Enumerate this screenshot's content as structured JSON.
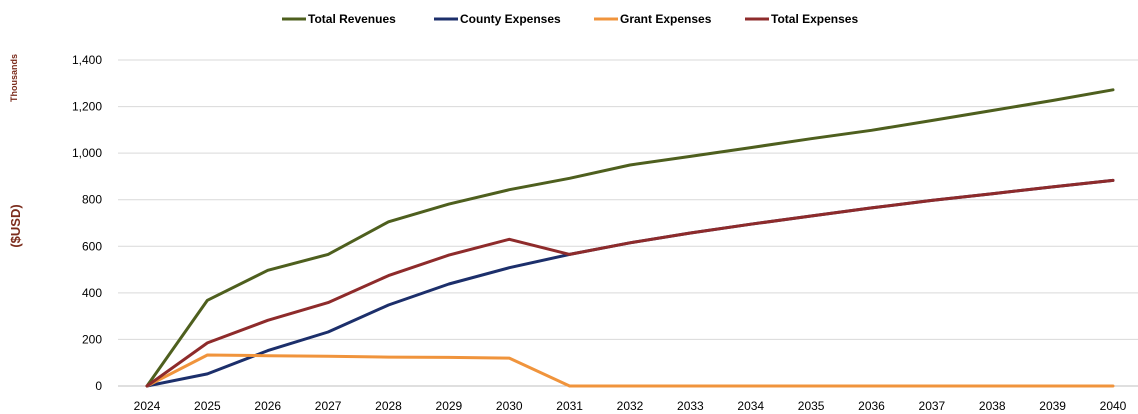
{
  "chart_data": {
    "type": "line",
    "title": "",
    "xlabel": "",
    "ylabel": "($USD)",
    "yunit_label": "Thousands",
    "x": [
      "2024",
      "2025",
      "2026",
      "2027",
      "2028",
      "2029",
      "2030",
      "2031",
      "2032",
      "2033",
      "2034",
      "2035",
      "2036",
      "2037",
      "2038",
      "2039",
      "2040"
    ],
    "ylim": [
      0,
      1400
    ],
    "yticks": [
      "0",
      "200",
      "400",
      "600",
      "800",
      "1,000",
      "1,200",
      "1,400"
    ],
    "ytick_values": [
      0,
      200,
      400,
      600,
      800,
      1000,
      1200,
      1400
    ],
    "grid": true,
    "legend_position": "top",
    "series": [
      {
        "name": "Total Revenues",
        "color": "#4e5f1e",
        "values": [
          0,
          368,
          497,
          565,
          705,
          781,
          843,
          892,
          949,
          986,
          1024,
          1062,
          1098,
          1140,
          1183,
          1226,
          1272
        ]
      },
      {
        "name": "County Expenses",
        "color": "#1c2f6b",
        "values": [
          0,
          52,
          152,
          232,
          348,
          438,
          508,
          565,
          615,
          657,
          695,
          730,
          765,
          797,
          826,
          855,
          883
        ]
      },
      {
        "name": "Grant Expenses",
        "color": "#f0943c",
        "values": [
          0,
          133,
          130,
          128,
          124,
          123,
          120,
          0,
          0,
          0,
          0,
          0,
          0,
          0,
          0,
          0,
          0
        ]
      },
      {
        "name": "Total Expenses",
        "color": "#8e2b2b",
        "values": [
          0,
          185,
          282,
          358,
          474,
          562,
          630,
          565,
          615,
          657,
          695,
          730,
          765,
          797,
          826,
          855,
          883
        ]
      }
    ]
  }
}
